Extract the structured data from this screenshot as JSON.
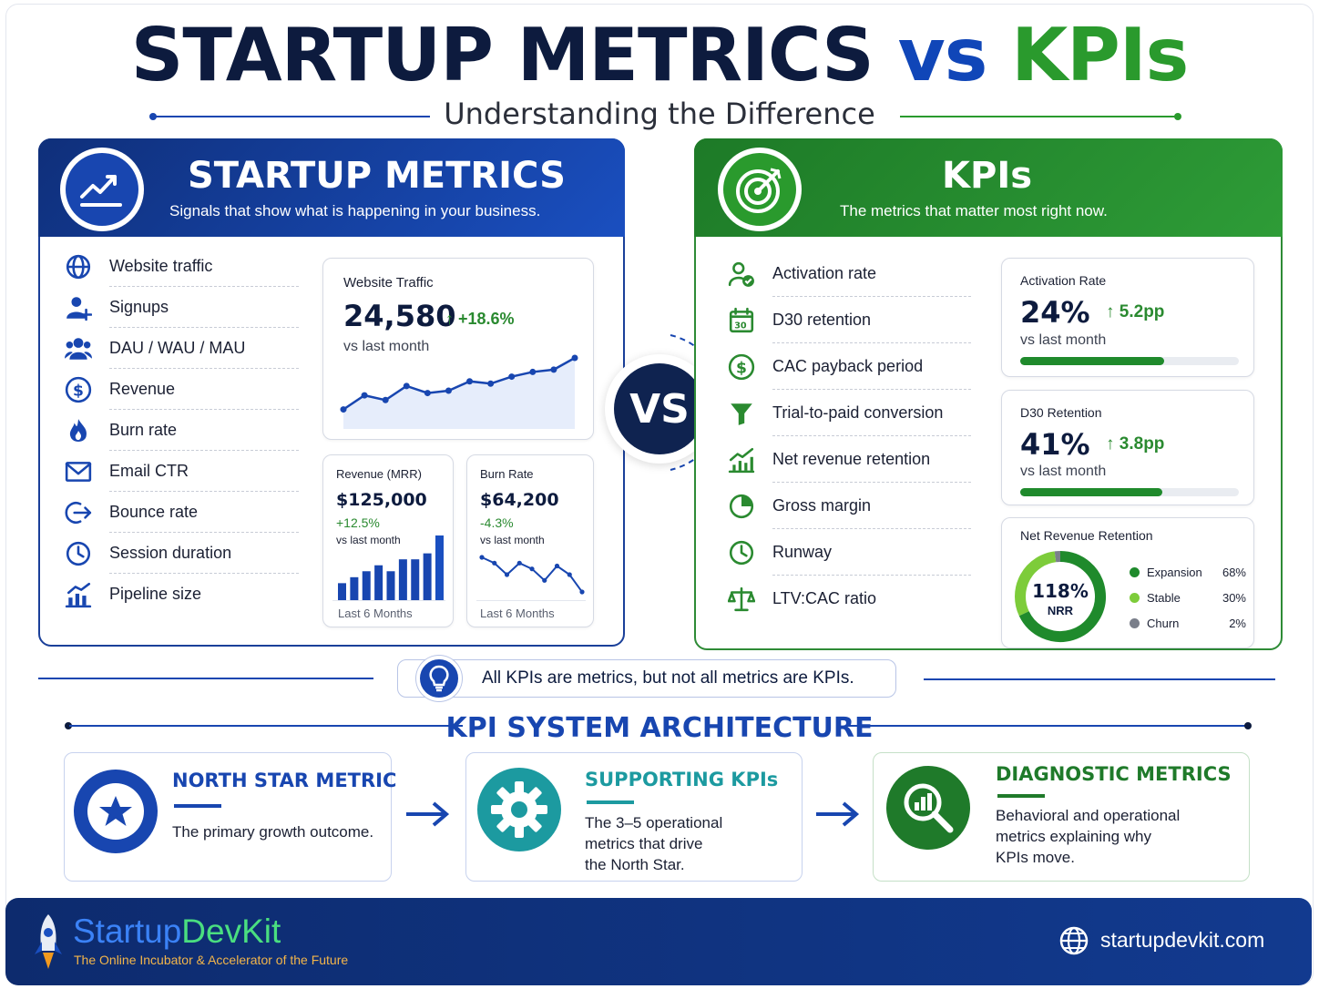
{
  "header": {
    "title_part1": "STARTUP METRICS",
    "title_part2": "vs",
    "title_part3": "KPIs",
    "subtitle": "Understanding the Difference"
  },
  "left": {
    "title": "STARTUP METRICS",
    "subtitle": "Signals that show what is happening in your business.",
    "items": [
      {
        "icon": "globe-icon",
        "label": "Website traffic"
      },
      {
        "icon": "add-user-icon",
        "label": "Signups"
      },
      {
        "icon": "users-icon",
        "label": "DAU / WAU / MAU"
      },
      {
        "icon": "dollar-icon",
        "label": "Revenue"
      },
      {
        "icon": "flame-icon",
        "label": "Burn rate"
      },
      {
        "icon": "email-icon",
        "label": "Email CTR"
      },
      {
        "icon": "exit-icon",
        "label": "Bounce rate"
      },
      {
        "icon": "clock-icon",
        "label": "Session duration"
      },
      {
        "icon": "bar-chart-icon",
        "label": "Pipeline size"
      }
    ],
    "traffic_card": {
      "title": "Website Traffic",
      "value": "24,580",
      "change": "↑ +18.6%",
      "compare": "vs last month",
      "points": [
        3,
        6,
        5,
        8,
        6.5,
        7,
        9,
        8.5,
        10,
        11,
        11.5,
        14
      ]
    },
    "revenue_card": {
      "title": "Revenue (MRR)",
      "value": "$125,000",
      "change": "+12.5%",
      "compare": "vs last month",
      "footer": "Last 6 Months",
      "bars": [
        3,
        4,
        5,
        6,
        5,
        7,
        7,
        8,
        11
      ]
    },
    "burn_card": {
      "title": "Burn Rate",
      "value": "$64,200",
      "change": "-4.3%",
      "compare": "vs last month",
      "footer": "Last 6 Months",
      "points": [
        8,
        7,
        5,
        7,
        6,
        4,
        6.5,
        5,
        2
      ]
    }
  },
  "vs_label": "VS",
  "right": {
    "title": "KPIs",
    "subtitle": "The metrics that matter most right now.",
    "items": [
      {
        "icon": "user-check-icon",
        "label": "Activation rate"
      },
      {
        "icon": "calendar-icon",
        "label": "D30 retention"
      },
      {
        "icon": "dollar-icon",
        "label": "CAC payback period"
      },
      {
        "icon": "funnel-icon",
        "label": "Trial-to-paid conversion"
      },
      {
        "icon": "growth-chart-icon",
        "label": "Net revenue retention"
      },
      {
        "icon": "pie-icon",
        "label": "Gross margin"
      },
      {
        "icon": "clock-icon",
        "label": "Runway"
      },
      {
        "icon": "scale-icon",
        "label": "LTV:CAC ratio"
      }
    ],
    "activation_card": {
      "title": "Activation Rate",
      "value": "24%",
      "change": "↑ 5.2pp",
      "compare": "vs last month",
      "progress": 0.66
    },
    "retention_card": {
      "title": "D30 Retention",
      "value": "41%",
      "change": "↑ 3.8pp",
      "compare": "vs last month",
      "progress": 0.65
    },
    "nrr_card": {
      "title": "Net Revenue Retention",
      "value": "118%",
      "unit": "NRR",
      "legend": [
        {
          "name": "Expansion",
          "pct": "68%",
          "value": 68,
          "color": "#1f8a2c"
        },
        {
          "name": "Stable",
          "pct": "30%",
          "value": 30,
          "color": "#7dcc3a"
        },
        {
          "name": "Churn",
          "pct": "2%",
          "value": 2,
          "color": "#7a7f8a"
        }
      ]
    }
  },
  "note": "All KPIs are metrics, but not all metrics are KPIs.",
  "architecture": {
    "title": "KPI SYSTEM ARCHITECTURE",
    "boxes": [
      {
        "title": "NORTH STAR METRIC",
        "body": [
          "The primary growth outcome."
        ],
        "color": "#1846b0"
      },
      {
        "title": "SUPPORTING KPIs",
        "body": [
          "The 3–5 operational",
          "metrics that drive",
          "the North Star."
        ],
        "color": "#1c9aa0"
      },
      {
        "title": "DIAGNOSTIC METRICS",
        "body": [
          "Behavioral and operational",
          "metrics explaining why",
          "KPIs move."
        ],
        "color": "#1f7a2a"
      }
    ]
  },
  "footer": {
    "brand_part1": "Startup",
    "brand_part2": "DevKit",
    "tagline": "The Online Incubator & Accelerator of the Future",
    "website": "startupdevkit.com"
  }
}
